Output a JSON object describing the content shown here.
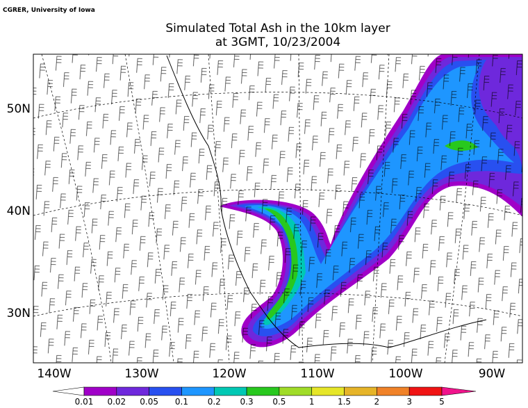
{
  "credit": "CGRER, University of Iowa",
  "title": [
    "Simulated Total Ash in the 10km layer",
    "at 3GMT, 10/23/2004"
  ],
  "lon_labels": [
    "140W",
    "130W",
    "120W",
    "110W",
    "100W",
    "90W"
  ],
  "lat_labels": [
    "30N",
    "40N",
    "50N"
  ],
  "colorbar": {
    "labels": [
      "0.01",
      "0.02",
      "0.05",
      "0.1",
      "0.2",
      "0.3",
      "0.5",
      "1",
      "1.5",
      "2",
      "3",
      "5"
    ],
    "colors": [
      "#ffffff",
      "#a000c8",
      "#6e28dc",
      "#2850f0",
      "#1e96ff",
      "#00c8b4",
      "#28c81e",
      "#a0dc28",
      "#e6e628",
      "#e6b428",
      "#f08228",
      "#f01414",
      "#f0148c"
    ]
  }
}
